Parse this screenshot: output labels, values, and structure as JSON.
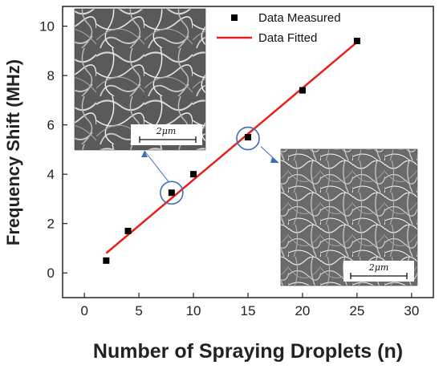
{
  "chart_data": {
    "type": "scatter",
    "title": "",
    "xlabel": "Number of Spraying Droplets (n)",
    "ylabel": "Frequency Shift (MHz)",
    "xlim": [
      -2,
      32
    ],
    "ylim": [
      -1,
      10.8
    ],
    "xticks": [
      0,
      5,
      10,
      15,
      20,
      25,
      30
    ],
    "yticks": [
      0,
      2,
      4,
      6,
      8,
      10
    ],
    "grid": false,
    "legend_position": "top-right",
    "series": [
      {
        "name": "Data Measured",
        "type": "scatter",
        "marker": "square",
        "color": "#000000",
        "x": [
          2,
          4,
          8,
          10,
          15,
          20,
          25
        ],
        "y": [
          0.5,
          1.7,
          3.25,
          4.0,
          5.5,
          7.4,
          9.4
        ]
      },
      {
        "name": "Data Fitted",
        "type": "line",
        "color": "#e8201c",
        "x": [
          2,
          25
        ],
        "y": [
          0.8,
          9.35
        ]
      }
    ],
    "annotations": [
      {
        "kind": "circle",
        "x": 8,
        "y": 3.25,
        "color": "#3a6fb8"
      },
      {
        "kind": "circle",
        "x": 15,
        "y": 5.45,
        "color": "#3a6fb8"
      }
    ],
    "insets": [
      {
        "scale_label": "2μm",
        "linked_point": 8
      },
      {
        "scale_label": "2μm",
        "linked_point": 15
      }
    ]
  }
}
